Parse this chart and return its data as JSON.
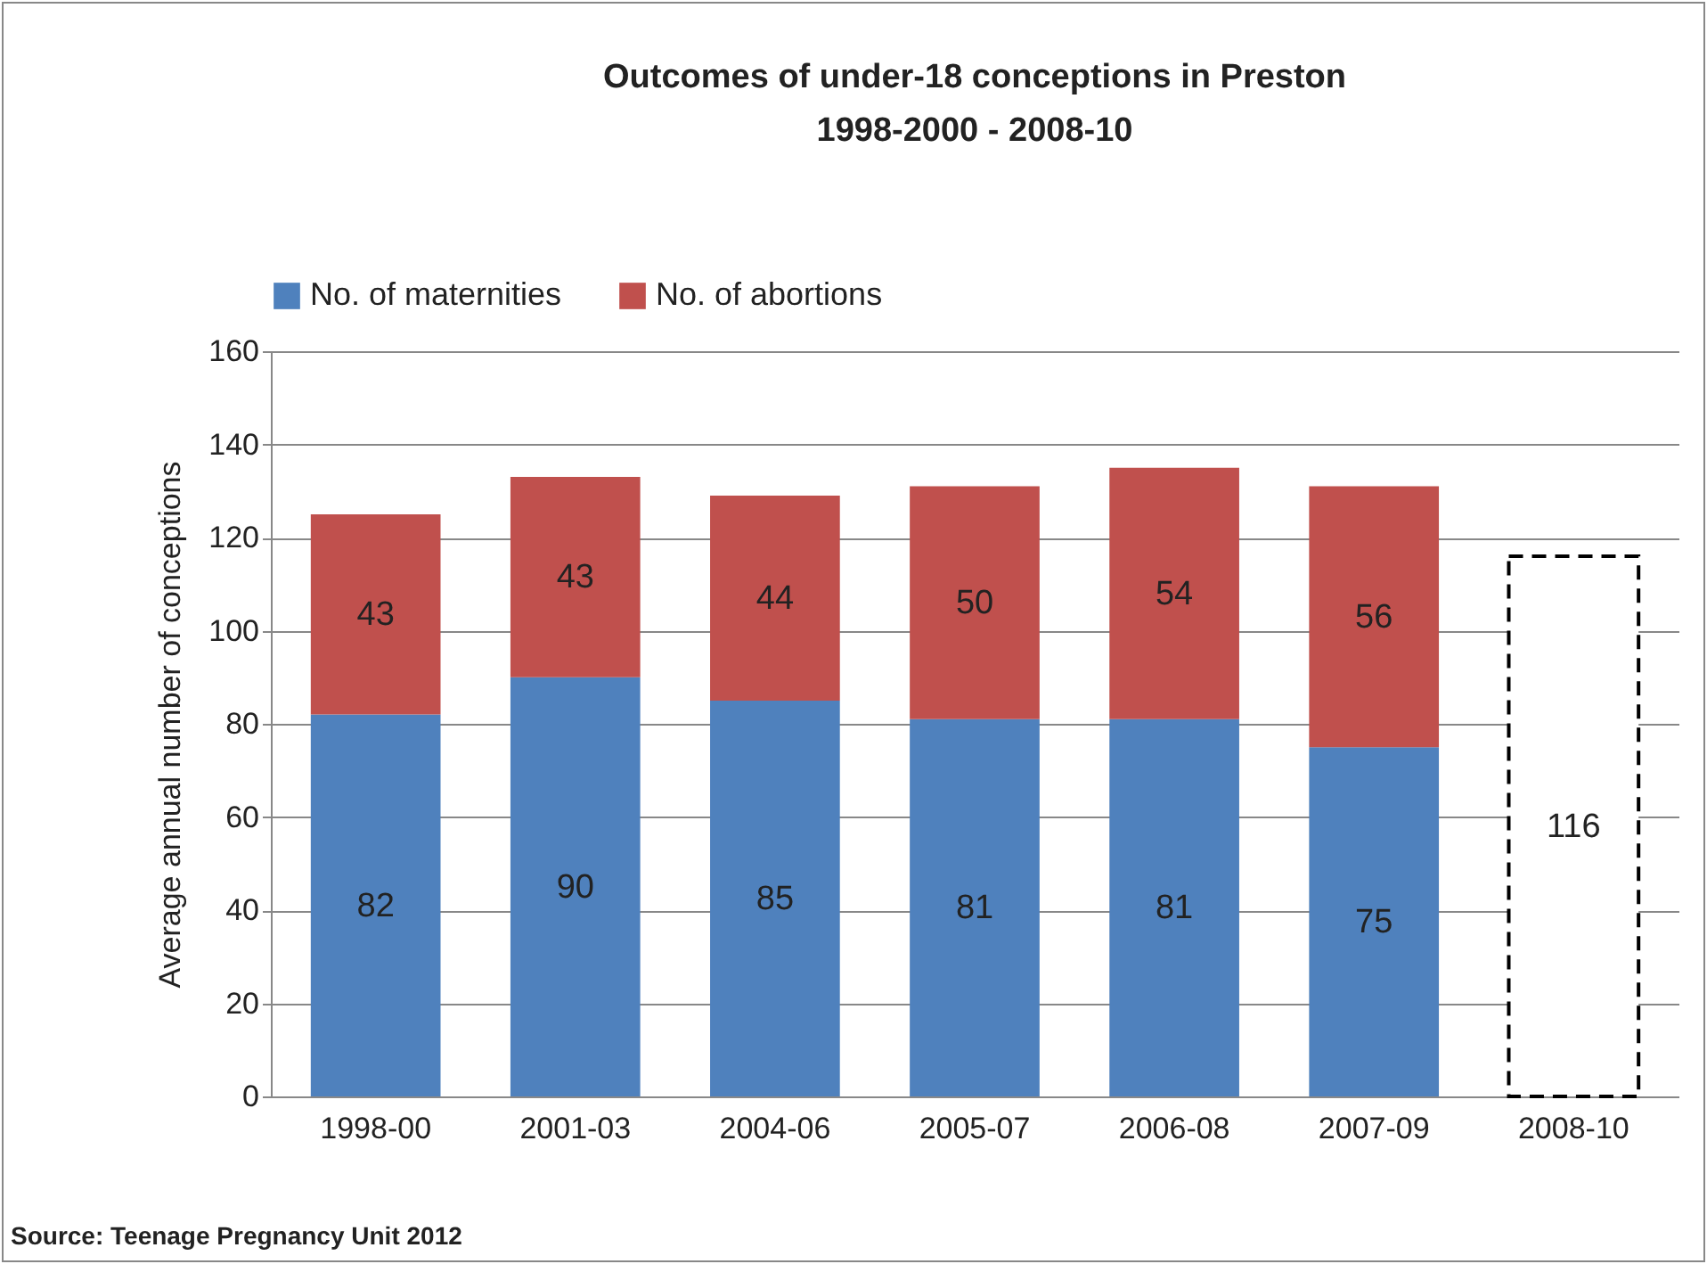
{
  "chart_data": {
    "type": "bar",
    "title": "Outcomes of under-18 conceptions in Preston\n1998-2000 - 2008-10",
    "ylabel": "Average annual number of conceptions",
    "categories": [
      "1998-00",
      "2001-03",
      "2004-06",
      "2005-07",
      "2006-08",
      "2007-09",
      "2008-10"
    ],
    "stacked": true,
    "data_labels": true,
    "grid": "y",
    "legend": "top",
    "ylim": [
      0,
      160
    ],
    "yticks": [
      0,
      20,
      40,
      60,
      80,
      100,
      120,
      140,
      160
    ],
    "series": [
      {
        "name": "No. of maternities",
        "color": "#4f81bd",
        "values": [
          82,
          90,
          85,
          81,
          81,
          75,
          null
        ]
      },
      {
        "name": "No. of abortions",
        "color": "#c0504d",
        "values": [
          43,
          43,
          44,
          50,
          54,
          56,
          null
        ]
      },
      {
        "color": "#000000",
        "line_style": "dashed",
        "values": [
          null,
          null,
          null,
          null,
          null,
          null,
          116
        ]
      }
    ],
    "annotations": [
      "Source: Teenage Pregnancy Unit 2012"
    ]
  }
}
